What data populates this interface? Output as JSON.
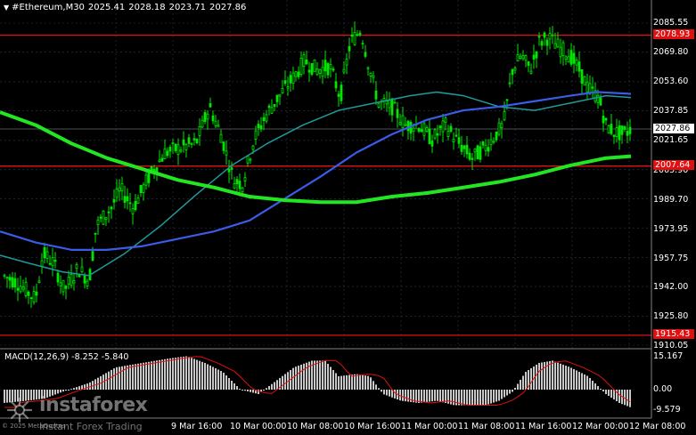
{
  "header": {
    "symbol_label": "#Ethereum,M30",
    "ohlc": [
      "2025.41",
      "2028.18",
      "2023.71",
      "2027.86"
    ]
  },
  "macd": {
    "label": "MACD(12,26,9)",
    "values": [
      "-8.252",
      "-5.840"
    ],
    "axis": {
      "top": "15.167",
      "zero": "0.00",
      "bottom": "-9.579"
    }
  },
  "price_axis": [
    "2085.55",
    "2069.80",
    "2053.60",
    "2037.85",
    "2021.65",
    "2005.90",
    "1989.70",
    "1973.95",
    "1957.75",
    "1942.00",
    "1925.80",
    "1910.05"
  ],
  "levels": [
    {
      "value": "2078.93",
      "color": "#e01010"
    },
    {
      "value": "2007.64",
      "color": "#e01010"
    },
    {
      "value": "1915.43",
      "color": "#e01010"
    }
  ],
  "current_price": "2027.86",
  "time_labels": [
    "9 Mar 16:00",
    "10 Mar 00:00",
    "10 Mar 08:00",
    "10 Mar 16:00",
    "11 Mar 00:00",
    "11 Mar 08:00",
    "11 Mar 16:00",
    "12 Mar 00:00",
    "12 Mar 08:00"
  ],
  "copyright": "© 2025 MetaQuotes",
  "watermark": {
    "brand": "instaforex",
    "tagline": "Instant Forex Trading"
  },
  "colors": {
    "background": "#000000",
    "candles": "#00e600",
    "grid": "#2a3a50",
    "level_line": "#e01010",
    "ma_fast": "#1f9a9a",
    "ma_mid": "#3a5ce8",
    "ma_slow": "#22e622",
    "macd_hist": "#c8c8c8",
    "macd_signal": "#e01010"
  }
}
